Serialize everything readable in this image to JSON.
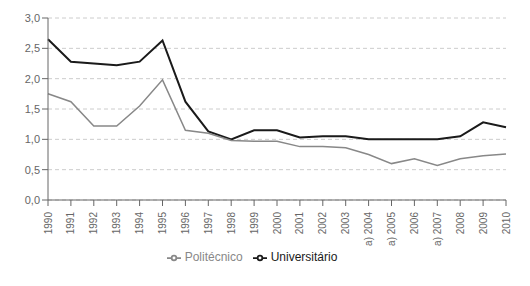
{
  "chart_data": {
    "type": "line",
    "categories": [
      "1990",
      "1991",
      "1992",
      "1993",
      "1994",
      "1995",
      "1996",
      "1997",
      "1998",
      "1999",
      "2000",
      "2001",
      "2002",
      "2003",
      "a) 2004",
      "a) 2005",
      "2006",
      "a) 2007",
      "2008",
      "2009",
      "2010"
    ],
    "series": [
      {
        "name": "Universitário",
        "color": "#1a1a1a",
        "values": [
          2.65,
          2.28,
          2.25,
          2.22,
          2.28,
          2.63,
          1.62,
          1.13,
          1.0,
          1.15,
          1.15,
          1.03,
          1.05,
          1.05,
          1.0,
          1.0,
          1.0,
          1.0,
          1.05,
          1.28,
          1.2
        ]
      },
      {
        "name": "Politécnico",
        "color": "#888888",
        "values": [
          1.75,
          1.62,
          1.22,
          1.22,
          1.55,
          1.98,
          1.15,
          1.1,
          0.98,
          0.97,
          0.97,
          0.88,
          0.88,
          0.86,
          0.75,
          0.6,
          0.68,
          0.57,
          0.68,
          0.73,
          0.76
        ]
      }
    ],
    "ylim": [
      0.0,
      3.0
    ],
    "yticks": [
      {
        "value": 0.0,
        "label": "0,0"
      },
      {
        "value": 0.5,
        "label": "0,5"
      },
      {
        "value": 1.0,
        "label": "1,0"
      },
      {
        "value": 1.5,
        "label": "1,5"
      },
      {
        "value": 2.0,
        "label": "2,0"
      },
      {
        "value": 2.5,
        "label": "2,5"
      },
      {
        "value": 3.0,
        "label": "3,0"
      }
    ],
    "grid": true,
    "legend": "bottom"
  }
}
